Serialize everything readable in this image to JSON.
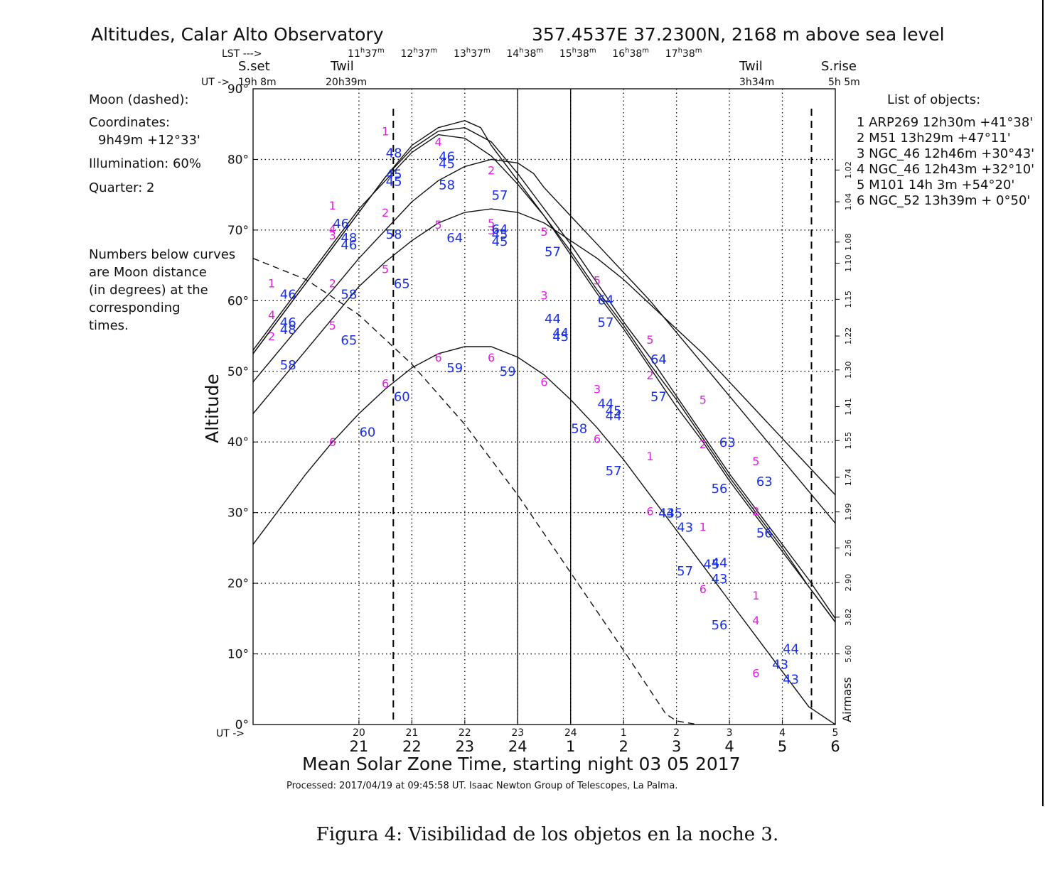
{
  "header": {
    "title": "Altitudes, Calar Alto Observatory",
    "location": "357.4537E   37.2300N, 2168 m above sea level",
    "lst_label": "LST --->",
    "lst_ticks": [
      "11h37m",
      "12h37m",
      "13h37m",
      "14h38m",
      "15h38m",
      "16h38m",
      "17h38m"
    ],
    "ut_label": "UT ->",
    "sset_label": "S.set",
    "sset_time": "19h 8m",
    "twil_label": "Twil",
    "twil_eve_time": "20h39m",
    "twil_morn_time": "3h34m",
    "srise_label": "S.rise",
    "srise_time": "5h 5m"
  },
  "moon": {
    "title": "Moon (dashed):",
    "coords_label": "Coordinates:",
    "coords": "9h49m  +12°33'",
    "illum": "Illumination:  60%",
    "quarter": "Quarter: 2",
    "note": [
      "Numbers below curves",
      "are Moon distance",
      "(in degrees) at the",
      "corresponding",
      "times."
    ]
  },
  "objects": {
    "title": "List of objects:",
    "items": [
      "1 ARP269 12h30m +41°38'",
      "2 M51      13h29m +47°11'",
      "3 NGC_46 12h46m +30°43'",
      "4 NGC_46 12h43m +32°10'",
      "5 M101    14h 3m +54°20'",
      "6 NGC_52 13h39m + 0°50'"
    ]
  },
  "footer": {
    "ut_arrow": "UT ->",
    "processed": "Processed: 2017/04/19 at 09:45:58 UT. Isaac  Newton Group of Telescopes, La Palma.",
    "caption": "Figura 4: Visibilidad de los objetos en la noche 3."
  },
  "chart_data": {
    "type": "line",
    "title": "Altitudes, Calar Alto Observatory",
    "xlabel": "Mean Solar Zone Time, starting night 03 05 2017",
    "ylabel": "Altitude",
    "y2label": "Airmass",
    "xlim": [
      19.0,
      30.0
    ],
    "ylim": [
      0,
      90
    ],
    "yticks": [
      0,
      10,
      20,
      30,
      40,
      50,
      60,
      70,
      80,
      90
    ],
    "ytick_labels": [
      "0°",
      "10°",
      "20°",
      "30°",
      "40°",
      "50°",
      "60°",
      "70°",
      "80°",
      "90°"
    ],
    "xticks": [
      21,
      22,
      23,
      24,
      25,
      26,
      27,
      28,
      29,
      30
    ],
    "zone_tick_labels": [
      "21",
      "22",
      "23",
      "24",
      "1",
      "2",
      "3",
      "4",
      "5",
      "6"
    ],
    "ut_tick_labels": [
      "20",
      "21",
      "22",
      "23",
      "24",
      "1",
      "2",
      "3",
      "4",
      "5"
    ],
    "airmass_ticks": [
      {
        "alt": 78.5,
        "label": "1.02"
      },
      {
        "alt": 74.0,
        "label": "1.04"
      },
      {
        "alt": 68.3,
        "label": "1.08"
      },
      {
        "alt": 65.3,
        "label": "1.10"
      },
      {
        "alt": 60.2,
        "label": "1.15"
      },
      {
        "alt": 55.0,
        "label": "1.22"
      },
      {
        "alt": 50.2,
        "label": "1.30"
      },
      {
        "alt": 45.0,
        "label": "1.41"
      },
      {
        "alt": 40.2,
        "label": "1.55"
      },
      {
        "alt": 35.0,
        "label": "1.74"
      },
      {
        "alt": 30.1,
        "label": "1.99"
      },
      {
        "alt": 25.0,
        "label": "2.36"
      },
      {
        "alt": 20.1,
        "label": "2.90"
      },
      {
        "alt": 15.2,
        "label": "3.82"
      },
      {
        "alt": 10.0,
        "label": "5.60"
      }
    ],
    "vlines": {
      "dashed": [
        21.65,
        29.55
      ],
      "solid": [
        24.0,
        25.0
      ]
    },
    "series": [
      {
        "x": [
          19.0,
          19.5,
          20.0,
          20.5,
          21.0,
          21.5,
          22.0,
          22.5,
          23.0,
          23.3,
          23.5,
          24.0,
          24.5,
          25.0,
          25.5,
          26.0,
          26.5,
          27.0,
          27.5,
          28.0,
          28.5,
          29.0,
          29.5,
          30.0,
          30.2
        ],
        "y": [
          52.5,
          57.5,
          62.5,
          67.5,
          72.5,
          77.5,
          82.0,
          84.5,
          85.5,
          84.5,
          82.0,
          77.0,
          72.0,
          66.5,
          61.0,
          56.0,
          50.5,
          45.0,
          40.0,
          34.5,
          29.5,
          24.5,
          19.5,
          14.5,
          13.0
        ]
      },
      {
        "x": [
          19.0,
          19.5,
          20.0,
          20.5,
          21.0,
          21.5,
          22.0,
          22.5,
          23.0,
          23.5,
          24.0,
          24.3,
          24.5,
          25.0,
          25.5,
          26.0,
          26.5,
          27.0,
          27.5,
          28.0,
          28.5,
          29.0,
          29.5,
          30.0,
          30.2
        ],
        "y": [
          48.5,
          53.0,
          57.5,
          61.5,
          66.0,
          70.0,
          74.0,
          77.0,
          79.0,
          80.0,
          79.5,
          78.0,
          76.0,
          72.0,
          68.0,
          64.0,
          60.0,
          55.5,
          51.0,
          46.5,
          42.0,
          37.5,
          33.0,
          28.5,
          26.5
        ]
      },
      {
        "x": [
          19.0,
          19.5,
          20.0,
          20.5,
          21.0,
          21.5,
          22.0,
          22.5,
          23.0,
          23.5,
          24.0,
          24.5,
          25.0,
          25.5,
          26.0,
          26.5,
          27.0,
          27.5,
          28.0,
          28.5,
          29.0,
          29.5,
          30.0,
          30.2
        ],
        "y": [
          53.0,
          58.0,
          63.0,
          68.0,
          73.0,
          77.0,
          81.0,
          83.5,
          83.0,
          80.5,
          76.5,
          72.0,
          67.0,
          61.5,
          56.5,
          51.0,
          46.0,
          40.5,
          35.0,
          30.0,
          25.0,
          19.5,
          14.5,
          12.0
        ]
      },
      {
        "x": [
          19.0,
          19.5,
          20.0,
          20.5,
          21.0,
          21.5,
          22.0,
          22.5,
          23.0,
          23.5,
          24.0,
          24.5,
          25.0,
          25.5,
          26.0,
          26.5,
          27.0,
          27.5,
          28.0,
          28.5,
          29.0,
          29.5,
          30.0,
          30.2
        ],
        "y": [
          52.5,
          57.5,
          62.5,
          67.5,
          72.5,
          77.5,
          81.5,
          84.0,
          84.5,
          82.5,
          78.0,
          73.0,
          68.0,
          62.5,
          57.0,
          52.0,
          46.5,
          41.0,
          35.5,
          30.5,
          25.5,
          20.5,
          15.0,
          12.5
        ]
      },
      {
        "x": [
          19.0,
          19.5,
          20.0,
          20.5,
          21.0,
          21.5,
          22.0,
          22.5,
          23.0,
          23.5,
          24.0,
          24.5,
          25.0,
          25.5,
          26.0,
          26.5,
          27.0,
          27.5,
          28.0,
          28.5,
          29.0,
          29.5,
          30.0,
          30.2
        ],
        "y": [
          44.0,
          48.5,
          53.0,
          57.5,
          62.0,
          65.5,
          68.5,
          71.0,
          72.5,
          73.0,
          72.5,
          71.0,
          68.5,
          66.0,
          63.0,
          59.5,
          56.0,
          52.5,
          48.5,
          44.5,
          40.5,
          36.5,
          32.5,
          31.0
        ]
      },
      {
        "x": [
          19.0,
          19.5,
          20.0,
          20.5,
          21.0,
          21.5,
          22.0,
          22.5,
          23.0,
          23.5,
          24.0,
          24.5,
          25.0,
          25.5,
          26.0,
          26.5,
          27.0,
          27.5,
          28.0,
          28.5,
          29.0,
          29.5,
          30.0,
          30.2
        ],
        "y": [
          25.5,
          30.5,
          35.5,
          40.0,
          44.0,
          47.5,
          50.5,
          52.5,
          53.5,
          53.5,
          52.0,
          49.5,
          46.0,
          42.0,
          37.5,
          32.5,
          27.5,
          22.5,
          17.5,
          12.5,
          7.5,
          2.5,
          0.0,
          0.0
        ]
      }
    ],
    "moon_curve": {
      "x": [
        19.0,
        20.0,
        21.0,
        22.0,
        23.0,
        24.0,
        25.0,
        26.0,
        26.8,
        27.0,
        27.4
      ],
      "y": [
        66.0,
        63.0,
        58.0,
        51.0,
        42.5,
        32.5,
        21.5,
        10.5,
        1.5,
        0.5,
        0.0
      ]
    },
    "object_labels": [
      {
        "t": "1",
        "x": 19.35,
        "y": 62.5
      },
      {
        "t": "4",
        "x": 19.35,
        "y": 58.0
      },
      {
        "t": "2",
        "x": 19.35,
        "y": 55.0
      },
      {
        "t": "1",
        "x": 20.5,
        "y": 73.5
      },
      {
        "t": "4",
        "x": 20.5,
        "y": 70.2
      },
      {
        "t": "3",
        "x": 20.5,
        "y": 69.3
      },
      {
        "t": "2",
        "x": 20.5,
        "y": 62.5
      },
      {
        "t": "5",
        "x": 20.5,
        "y": 56.5
      },
      {
        "t": "6",
        "x": 20.5,
        "y": 40.0
      },
      {
        "t": "1",
        "x": 21.5,
        "y": 84.0
      },
      {
        "t": "2",
        "x": 21.5,
        "y": 72.5
      },
      {
        "t": "5",
        "x": 21.5,
        "y": 64.5
      },
      {
        "t": "6",
        "x": 21.5,
        "y": 48.3
      },
      {
        "t": "4",
        "x": 22.5,
        "y": 82.5
      },
      {
        "t": "5",
        "x": 22.5,
        "y": 70.8
      },
      {
        "t": "6",
        "x": 22.5,
        "y": 52.0
      },
      {
        "t": "2",
        "x": 23.5,
        "y": 78.5
      },
      {
        "t": "5",
        "x": 23.5,
        "y": 71.0
      },
      {
        "t": "3",
        "x": 23.5,
        "y": 70.0
      },
      {
        "t": "6",
        "x": 23.5,
        "y": 52.0
      },
      {
        "t": "5",
        "x": 24.5,
        "y": 69.8
      },
      {
        "t": "3",
        "x": 24.5,
        "y": 60.8
      },
      {
        "t": "6",
        "x": 24.5,
        "y": 48.5
      },
      {
        "t": "5",
        "x": 25.5,
        "y": 62.9
      },
      {
        "t": "3",
        "x": 25.5,
        "y": 47.5
      },
      {
        "t": "6",
        "x": 25.5,
        "y": 40.5
      },
      {
        "t": "5",
        "x": 26.5,
        "y": 54.5
      },
      {
        "t": "2",
        "x": 26.5,
        "y": 49.5
      },
      {
        "t": "1",
        "x": 26.5,
        "y": 38.0
      },
      {
        "t": "6",
        "x": 26.5,
        "y": 30.2
      },
      {
        "t": "5",
        "x": 27.5,
        "y": 46.0
      },
      {
        "t": "2",
        "x": 27.5,
        "y": 39.7
      },
      {
        "t": "1",
        "x": 27.5,
        "y": 28.0
      },
      {
        "t": "6",
        "x": 27.5,
        "y": 19.2
      },
      {
        "t": "5",
        "x": 28.5,
        "y": 37.3
      },
      {
        "t": "2",
        "x": 28.5,
        "y": 30.2
      },
      {
        "t": "1",
        "x": 28.5,
        "y": 18.3
      },
      {
        "t": "4",
        "x": 28.5,
        "y": 14.8
      },
      {
        "t": "6",
        "x": 28.5,
        "y": 7.3
      }
    ],
    "moon_distance_labels": [
      {
        "t": "46",
        "x": 19.5,
        "y": 61.0
      },
      {
        "t": "46",
        "x": 19.5,
        "y": 57.0
      },
      {
        "t": "48",
        "x": 19.5,
        "y": 56.0
      },
      {
        "t": "58",
        "x": 19.5,
        "y": 51.0
      },
      {
        "t": "46",
        "x": 20.5,
        "y": 71.0
      },
      {
        "t": "48",
        "x": 20.65,
        "y": 69.0
      },
      {
        "t": "46",
        "x": 20.65,
        "y": 68.0
      },
      {
        "t": "58",
        "x": 20.65,
        "y": 61.0
      },
      {
        "t": "65",
        "x": 20.65,
        "y": 54.5
      },
      {
        "t": "60",
        "x": 21.0,
        "y": 41.5
      },
      {
        "t": "48",
        "x": 21.5,
        "y": 81.0
      },
      {
        "t": "45",
        "x": 21.5,
        "y": 78.0
      },
      {
        "t": "45",
        "x": 21.5,
        "y": 77.0
      },
      {
        "t": "58",
        "x": 21.5,
        "y": 69.5
      },
      {
        "t": "65",
        "x": 21.65,
        "y": 62.5
      },
      {
        "t": "60",
        "x": 21.65,
        "y": 46.5
      },
      {
        "t": "46",
        "x": 22.5,
        "y": 80.5
      },
      {
        "t": "45",
        "x": 22.5,
        "y": 79.5
      },
      {
        "t": "58",
        "x": 22.5,
        "y": 76.5
      },
      {
        "t": "64",
        "x": 22.65,
        "y": 69.0
      },
      {
        "t": "59",
        "x": 22.65,
        "y": 50.6
      },
      {
        "t": "57",
        "x": 23.5,
        "y": 75.0
      },
      {
        "t": "64",
        "x": 23.5,
        "y": 70.2
      },
      {
        "t": "45",
        "x": 23.5,
        "y": 69.5
      },
      {
        "t": "45",
        "x": 23.5,
        "y": 68.5
      },
      {
        "t": "59",
        "x": 23.65,
        "y": 50.1
      },
      {
        "t": "57",
        "x": 24.5,
        "y": 67.0
      },
      {
        "t": "44",
        "x": 24.5,
        "y": 57.5
      },
      {
        "t": "44",
        "x": 24.65,
        "y": 55.5
      },
      {
        "t": "45",
        "x": 24.65,
        "y": 55.0
      },
      {
        "t": "58",
        "x": 25.0,
        "y": 42.0
      },
      {
        "t": "64",
        "x": 25.5,
        "y": 60.2
      },
      {
        "t": "57",
        "x": 25.5,
        "y": 57.0
      },
      {
        "t": "44",
        "x": 25.5,
        "y": 45.5
      },
      {
        "t": "45",
        "x": 25.65,
        "y": 44.5
      },
      {
        "t": "44",
        "x": 25.65,
        "y": 43.8
      },
      {
        "t": "57",
        "x": 25.65,
        "y": 36.0
      },
      {
        "t": "64",
        "x": 26.5,
        "y": 51.8
      },
      {
        "t": "57",
        "x": 26.5,
        "y": 46.5
      },
      {
        "t": "43",
        "x": 26.65,
        "y": 30.0
      },
      {
        "t": "45",
        "x": 26.8,
        "y": 30.0
      },
      {
        "t": "43",
        "x": 27.0,
        "y": 28.0
      },
      {
        "t": "57",
        "x": 27.0,
        "y": 21.8
      },
      {
        "t": "45",
        "x": 27.5,
        "y": 22.8
      },
      {
        "t": "44",
        "x": 27.65,
        "y": 23.0
      },
      {
        "t": "43",
        "x": 27.65,
        "y": 20.7
      },
      {
        "t": "56",
        "x": 27.65,
        "y": 33.5
      },
      {
        "t": "63",
        "x": 27.8,
        "y": 40.0
      },
      {
        "t": "56",
        "x": 27.65,
        "y": 14.2
      },
      {
        "t": "63",
        "x": 28.5,
        "y": 34.5
      },
      {
        "t": "56",
        "x": 28.5,
        "y": 27.2
      },
      {
        "t": "44",
        "x": 29.0,
        "y": 10.8
      },
      {
        "t": "43",
        "x": 28.8,
        "y": 8.6
      },
      {
        "t": "43",
        "x": 29.0,
        "y": 6.5
      }
    ]
  }
}
